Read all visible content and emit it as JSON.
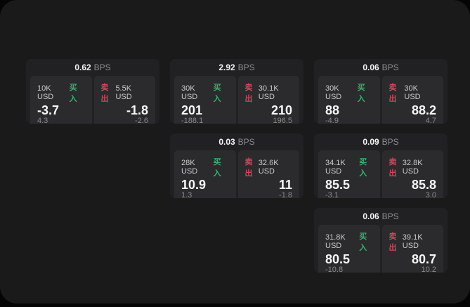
{
  "labels": {
    "bps": "BPS",
    "buy": "买入",
    "sell": "卖出"
  },
  "colors": {
    "buy_accent": "#3fae6f",
    "sell_accent": "#c94a5e",
    "window_bg": "#1a1a1b",
    "card_bg": "#212123",
    "panel_bg": "#2b2b2d"
  },
  "cards": [
    {
      "bps": "0.62",
      "buy": {
        "notional": "10K USD",
        "price": "-3.7",
        "delta": "4.3"
      },
      "sell": {
        "notional": "5.5K USD",
        "price": "-1.8",
        "delta": "-2.6"
      }
    },
    {
      "bps": "2.92",
      "buy": {
        "notional": "30K USD",
        "price": "201",
        "delta": "-188.1"
      },
      "sell": {
        "notional": "30.1K USD",
        "price": "210",
        "delta": "196.5"
      }
    },
    {
      "bps": "0.06",
      "buy": {
        "notional": "30K USD",
        "price": "88",
        "delta": "-4.9"
      },
      "sell": {
        "notional": "30K USD",
        "price": "88.2",
        "delta": "4.7"
      }
    },
    {
      "bps": "0.03",
      "buy": {
        "notional": "28K USD",
        "price": "10.9",
        "delta": "1.3"
      },
      "sell": {
        "notional": "32.6K USD",
        "price": "11",
        "delta": "-1.8"
      }
    },
    {
      "bps": "0.09",
      "buy": {
        "notional": "34.1K USD",
        "price": "85.5",
        "delta": "-3.1"
      },
      "sell": {
        "notional": "32.8K USD",
        "price": "85.8",
        "delta": "3.0"
      }
    },
    {
      "bps": "0.06",
      "buy": {
        "notional": "31.8K USD",
        "price": "80.5",
        "delta": "-10.8"
      },
      "sell": {
        "notional": "39.1K USD",
        "price": "80.7",
        "delta": "10.2"
      }
    }
  ]
}
